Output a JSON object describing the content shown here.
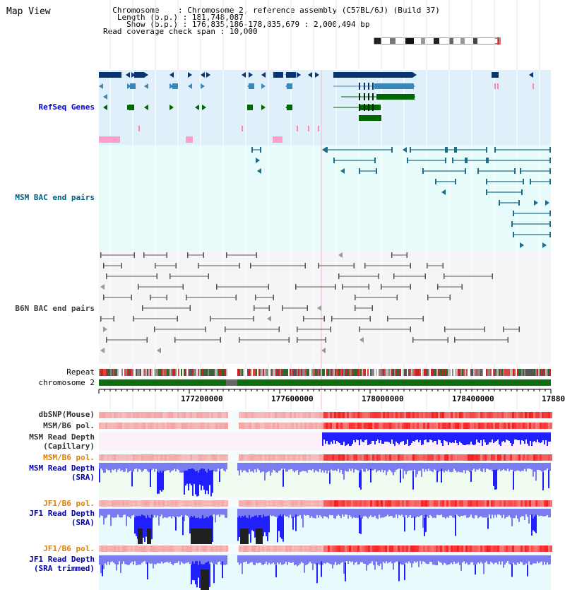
{
  "title": "Map View",
  "info": {
    "chromosome_label": "Chromosome",
    "chromosome_value": "Chromosome 2, reference assembly (C57BL/6J) (Build 37)",
    "length_label": "Length (b.p.)",
    "length_value": "181,748,087",
    "show_label": "Show (b.p.)",
    "show_value": "176,835,186-178,835,679 : 2,000,494 bp",
    "coverage_label": "Read coverage check span",
    "coverage_value": "10,000"
  },
  "tracks": {
    "refseq": "RefSeq Genes",
    "msm_bac": "MSM BAC end pairs",
    "b6n_bac": "B6N BAC end pairs",
    "repeat": "Repeat",
    "chromosome": "chromosome 2",
    "dbsnp": "dbSNP(Mouse)",
    "msm_b6_pol_1": "MSM/B6 pol.",
    "msm_read_depth_cap_1": "MSM Read Depth",
    "msm_read_depth_cap_2": "(Capillary)",
    "msm_b6_pol_2": "MSM/B6 pol.",
    "msm_read_depth_sra_1": "MSM Read Depth",
    "msm_read_depth_sra_2": "(SRA)",
    "jf1_b6_pol_1": "JF1/B6 pol.",
    "jf1_read_depth_sra_1": "JF1 Read Depth",
    "jf1_read_depth_sra_2": "(SRA)",
    "jf1_b6_pol_2": "JF1/B6 pol.",
    "jf1_read_depth_trim_1": "JF1 Read Depth",
    "jf1_read_depth_trim_2": "(SRA trimmed)"
  },
  "ruler": {
    "ticks": [
      "177200000",
      "177600000",
      "178000000",
      "178400000",
      "17880"
    ]
  },
  "colors": {
    "refseq_label": "#0000cc",
    "msm_bac_label": "#006080",
    "b6n_label": "#404040",
    "orange_label": "#e08000",
    "blue_label": "#0000aa",
    "gene_dark": "#0a3470",
    "gene_mid": "#3a88b8",
    "gene_green": "#006600",
    "depth_blue": "#2020ff",
    "depth_light": "#7b7bf0",
    "depth_black": "#202020"
  }
}
